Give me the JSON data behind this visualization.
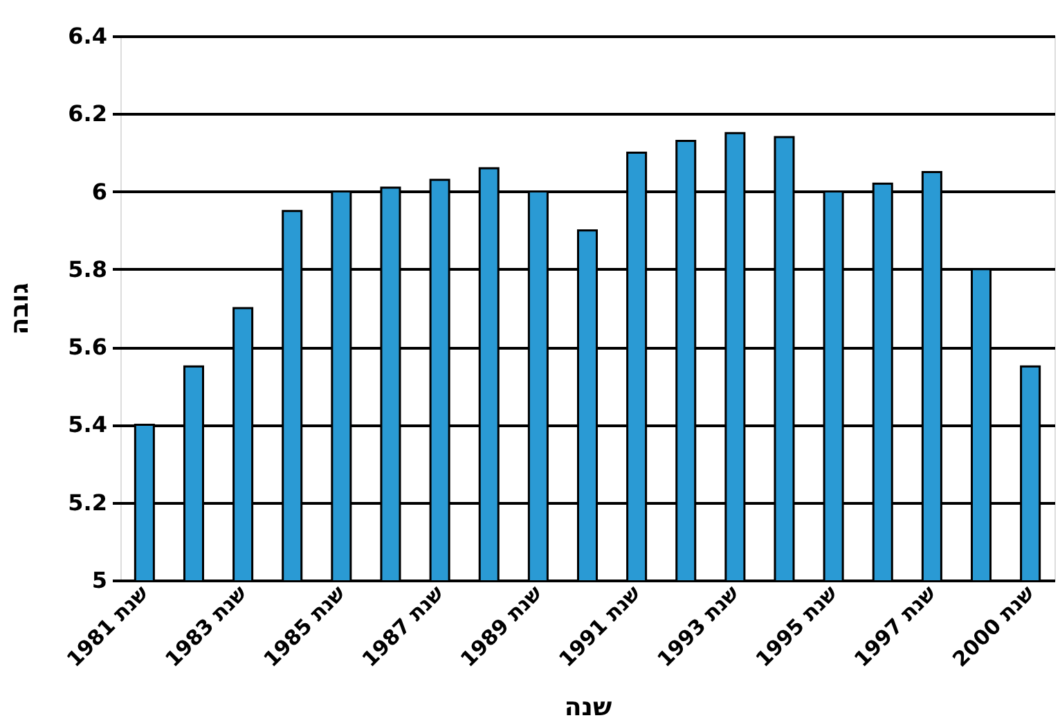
{
  "chart_data": {
    "type": "bar",
    "xlabel": "שנה",
    "ylabel": "גובה",
    "categories": [
      "שנת 1981",
      null,
      "שנת 1983",
      null,
      "שנת 1985",
      null,
      "שנת 1987",
      null,
      "שנת 1989",
      null,
      "שנת 1991",
      null,
      "שנת 1993",
      null,
      "שנת 1995",
      null,
      "שנת 1997",
      null,
      "שנת 2000"
    ],
    "values": [
      5.4,
      5.55,
      5.7,
      5.95,
      6.0,
      6.01,
      6.03,
      6.06,
      6.0,
      5.9,
      6.1,
      6.13,
      6.15,
      6.14,
      6.0,
      6.02,
      6.05,
      5.8,
      5.55
    ],
    "color": "#2a9ad4",
    "ylim": [
      5,
      6.4
    ],
    "yticks": [
      5,
      5.2,
      5.4,
      5.6,
      5.8,
      6,
      6.2,
      6.4
    ],
    "grid": "y"
  }
}
